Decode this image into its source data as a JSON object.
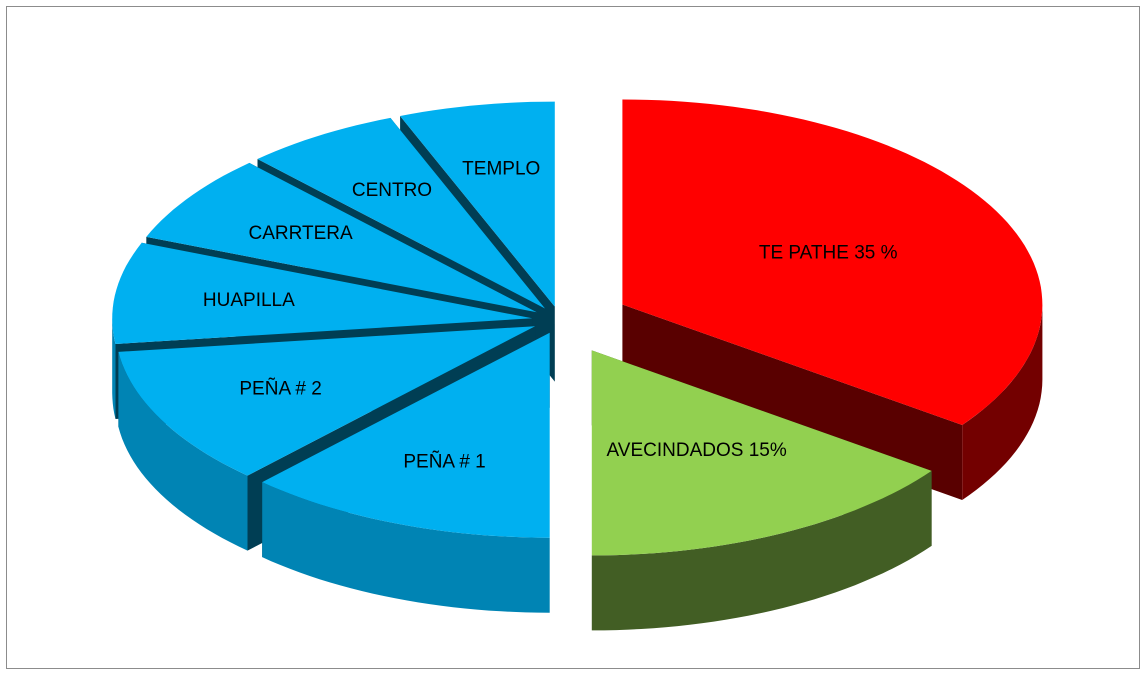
{
  "chart_data": {
    "type": "pie3d",
    "categories": [
      "TE  PATHE 35 %",
      "AVECINDADOS 15%",
      "PEÑA # 1",
      "PEÑA # 2",
      "HUAPILLA",
      "CARRTERA",
      "CENTRO",
      "TEMPLO"
    ],
    "values": [
      35,
      15,
      12,
      11,
      8,
      7,
      6,
      6
    ],
    "colors": [
      "#ff0000",
      "#92d050",
      "#00b0f0",
      "#00b0f0",
      "#00b0f0",
      "#00b0f0",
      "#00b0f0",
      "#00b0f0"
    ]
  }
}
